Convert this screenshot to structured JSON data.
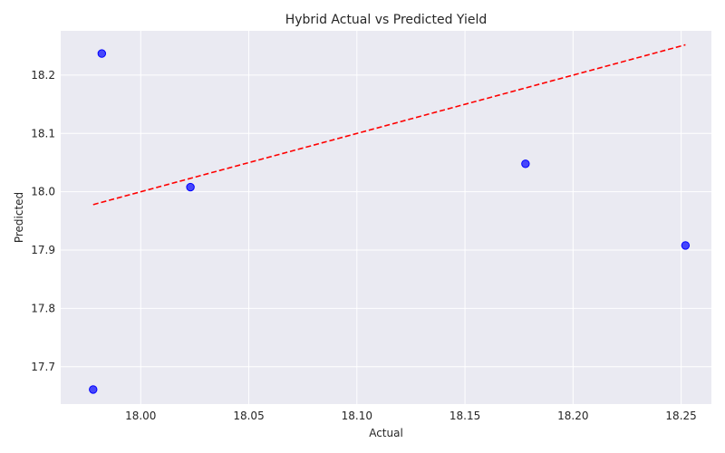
{
  "chart_data": {
    "type": "scatter",
    "title": "Hybrid Actual vs Predicted Yield",
    "xlabel": "Actual",
    "ylabel": "Predicted",
    "xlim": [
      17.963,
      18.264
    ],
    "ylim": [
      17.636,
      18.276
    ],
    "xticks": [
      18.0,
      18.05,
      18.1,
      18.15,
      18.2,
      18.25
    ],
    "xtick_labels": [
      "18.00",
      "18.05",
      "18.10",
      "18.15",
      "18.20",
      "18.25"
    ],
    "yticks": [
      17.7,
      17.8,
      17.9,
      18.0,
      18.1,
      18.2
    ],
    "ytick_labels": [
      "17.7",
      "17.8",
      "17.9",
      "18.0",
      "18.1",
      "18.2"
    ],
    "grid": true,
    "points": [
      {
        "x": 17.982,
        "y": 18.237
      },
      {
        "x": 18.023,
        "y": 18.008
      },
      {
        "x": 18.178,
        "y": 18.048
      },
      {
        "x": 18.252,
        "y": 17.908
      },
      {
        "x": 17.978,
        "y": 17.661
      }
    ],
    "reference_line": {
      "x": [
        17.978,
        18.252
      ],
      "y": [
        17.978,
        18.252
      ],
      "style": "dashed"
    },
    "colors": {
      "background": "#eaeaf2",
      "grid": "#ffffff",
      "points": "#0000ff",
      "reference_line": "#ff0000"
    }
  }
}
